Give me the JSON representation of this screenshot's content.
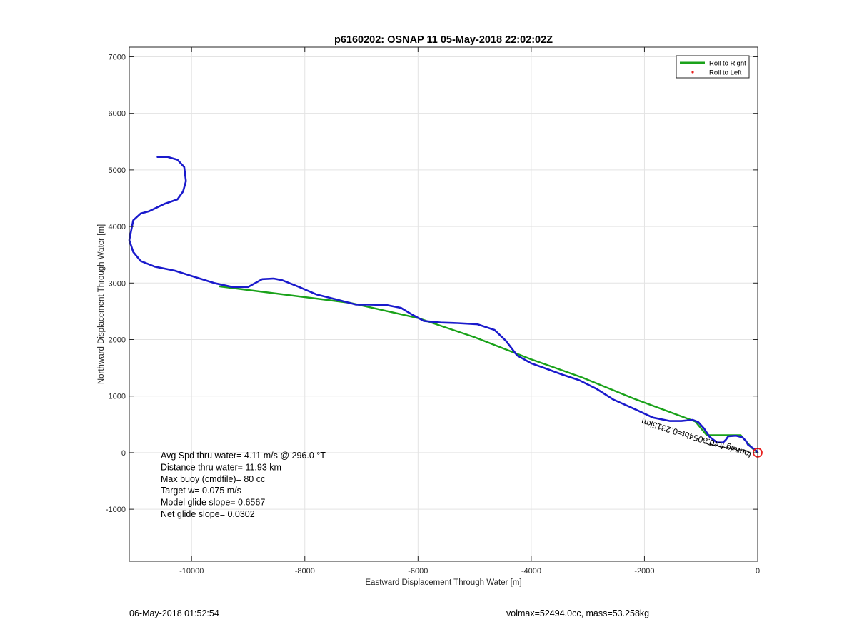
{
  "chart_data": {
    "type": "line",
    "title": "p6160202: OSNAP 11 05-May-2018 22:02:02Z",
    "xlabel": "Eastward Displacement Through Water [m]",
    "ylabel": "Northward Displacement Through Water [m]",
    "xlim": [
      -11100,
      0
    ],
    "ylim": [
      -1920,
      7170
    ],
    "x_ticks": [
      -10000,
      -8000,
      -6000,
      -4000,
      -2000,
      0
    ],
    "y_ticks": [
      -1000,
      0,
      1000,
      2000,
      3000,
      4000,
      5000,
      6000,
      7000
    ],
    "grid": true,
    "legend_position": "top-right",
    "legend": [
      {
        "label": "Roll to Right",
        "color": "#1aa21a"
      },
      {
        "label": "Roll to Left",
        "color": "#e8201e"
      }
    ],
    "series": [
      {
        "name": "Roll to Right",
        "color": "#1aa21a",
        "x": [
          -9500,
          -7200,
          -6000,
          -5000,
          -4000,
          -3100,
          -2200,
          -1100,
          -900,
          -300,
          -100,
          0
        ],
        "y": [
          2940,
          2650,
          2380,
          2040,
          1650,
          1330,
          960,
          550,
          310,
          310,
          80,
          0
        ]
      },
      {
        "color": "#1a1acc",
        "x": [
          -10600,
          -10420,
          -10250,
          -10130,
          -10100,
          -10150,
          -10250,
          -10480,
          -10750,
          -10900,
          -11030,
          -11100,
          -11030,
          -10900,
          -10650,
          -10300,
          -9950,
          -9600,
          -9280,
          -9000,
          -8750,
          -8550,
          -8400,
          -8100,
          -7800,
          -7400,
          -7100,
          -6850,
          -6550,
          -6300,
          -6100,
          -5900,
          -5600,
          -5300,
          -4950,
          -4650,
          -4450,
          -4250,
          -4000,
          -3750,
          -3450,
          -3150,
          -2850,
          -2550,
          -2150,
          -1850,
          -1550,
          -1350,
          -1150,
          -1050,
          -950,
          -850,
          -720,
          -610,
          -560,
          -520,
          -380,
          -270,
          -210,
          -170,
          -100,
          -30,
          0
        ],
        "y": [
          5230,
          5230,
          5180,
          5050,
          4800,
          4620,
          4480,
          4400,
          4270,
          4230,
          4110,
          3760,
          3550,
          3390,
          3290,
          3220,
          3110,
          3000,
          2930,
          2930,
          3070,
          3080,
          3050,
          2930,
          2800,
          2700,
          2620,
          2620,
          2610,
          2560,
          2440,
          2330,
          2300,
          2290,
          2270,
          2170,
          1980,
          1720,
          1580,
          1490,
          1380,
          1280,
          1130,
          940,
          760,
          620,
          560,
          560,
          580,
          540,
          430,
          280,
          180,
          180,
          230,
          290,
          300,
          270,
          210,
          140,
          90,
          40,
          0
        ]
      }
    ],
    "annotations": {
      "in_plot_labels": [
        "Avg Spd thru water=  4.11 m/s @ 296.0 °T",
        "Distance thru water= 11.93 km",
        "Max buoy (cmdfile)= 80 cc",
        "Target w= 0.075 m/s",
        "Model glide slope= 0.6567",
        "Net glide slope= 0.0302"
      ],
      "rotated_label": "fouruig for0.8054bt=0.2315km"
    },
    "footer_left": "06-May-2018 01:52:54",
    "footer_right": "volmax=52494.0cc, mass=53.258kg"
  }
}
